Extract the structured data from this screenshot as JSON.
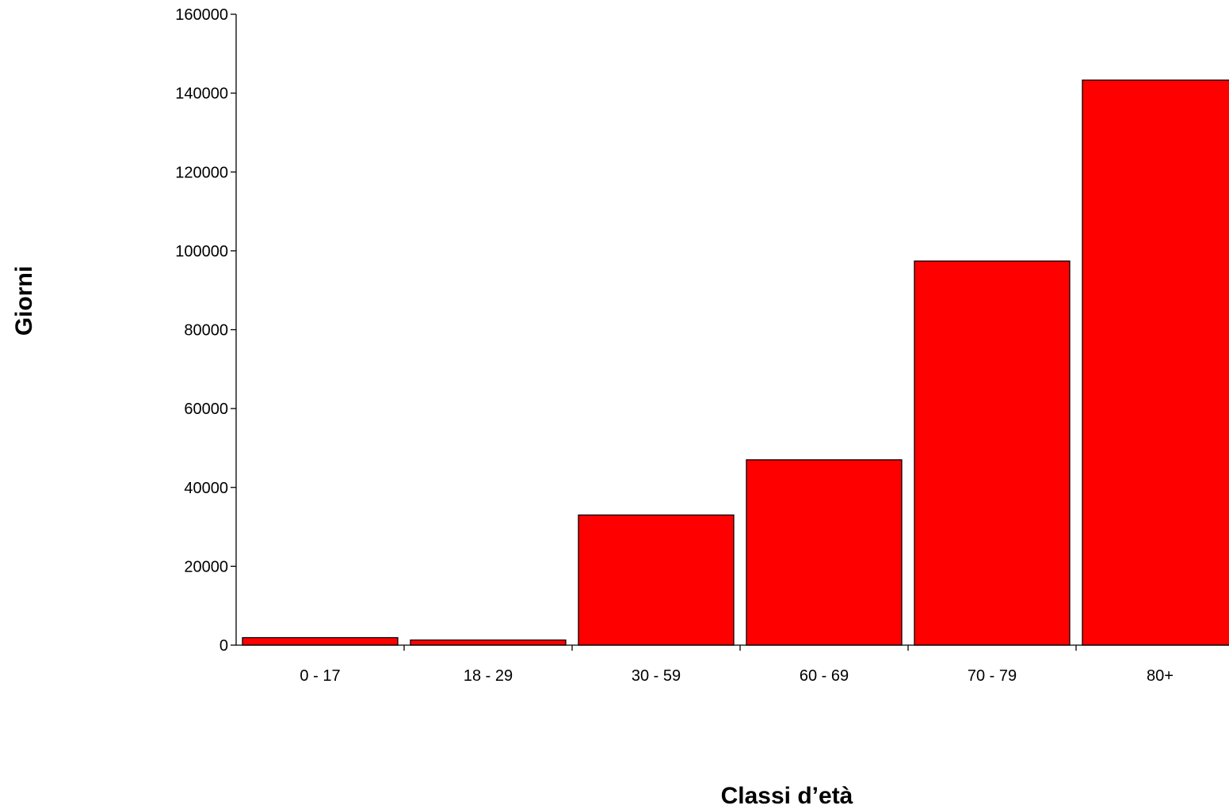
{
  "chart_data": {
    "type": "bar",
    "title": "",
    "xlabel": "Classi d’età",
    "ylabel": "Giorni",
    "categories": [
      "0 - 17",
      "18 - 29",
      "30 - 59",
      "60 - 69",
      "70 - 79",
      "80+"
    ],
    "values": [
      1900,
      1300,
      33000,
      47000,
      97400,
      143300
    ],
    "ylim": [
      0,
      160000
    ],
    "yticks": [
      "0",
      "20000",
      "40000",
      "60000",
      "80000",
      "100000",
      "120000",
      "140000",
      "160000"
    ],
    "grid": false,
    "legend": "none",
    "bar_color": "#ff0000"
  }
}
